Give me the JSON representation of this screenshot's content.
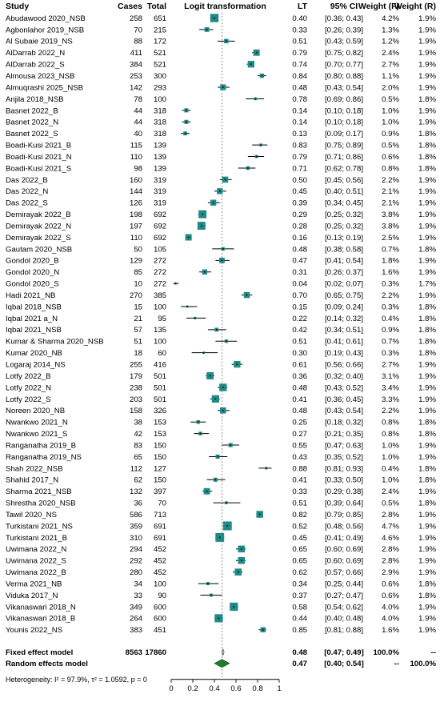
{
  "chart_data": {
    "type": "forest",
    "header": {
      "study": "Study",
      "cases": "Cases",
      "total": "Total",
      "plot": "Logit transformation",
      "lt": "LT",
      "ci": "95% CI",
      "wf": "Weight (F)",
      "wr": "Weight (R)"
    },
    "xlim": [
      0,
      1
    ],
    "xticks": [
      "0",
      "0.2",
      "0.4",
      "0.6",
      "0.8",
      "1"
    ],
    "reference_line": 0.47,
    "studies": [
      {
        "study": "Abudawood 2020_NSB",
        "cases": "258",
        "total": "651",
        "lt": "0.40",
        "ci": "[0.36; 0.43]",
        "wf": "4.2%",
        "wr": "1.9%",
        "est": 0.4,
        "lo": 0.36,
        "hi": 0.43
      },
      {
        "study": "Agbonlahor 2019_NSB",
        "cases": "70",
        "total": "215",
        "lt": "0.33",
        "ci": "[0.26; 0.39]",
        "wf": "1.3%",
        "wr": "1.9%",
        "est": 0.33,
        "lo": 0.26,
        "hi": 0.39
      },
      {
        "study": "Al Subaie 2019_NS",
        "cases": "88",
        "total": "172",
        "lt": "0.51",
        "ci": "[0.43; 0.59]",
        "wf": "1.2%",
        "wr": "1.9%",
        "est": 0.51,
        "lo": 0.43,
        "hi": 0.59
      },
      {
        "study": "AlDarrab 2022_N",
        "cases": "411",
        "total": "521",
        "lt": "0.79",
        "ci": "[0.75; 0.82]",
        "wf": "2.4%",
        "wr": "1.9%",
        "est": 0.79,
        "lo": 0.75,
        "hi": 0.82
      },
      {
        "study": "AlDarrab 2022_S",
        "cases": "384",
        "total": "521",
        "lt": "0.74",
        "ci": "[0.70; 0.77]",
        "wf": "2.7%",
        "wr": "1.9%",
        "est": 0.74,
        "lo": 0.7,
        "hi": 0.77
      },
      {
        "study": "Almousa 2023_NSB",
        "cases": "253",
        "total": "300",
        "lt": "0.84",
        "ci": "[0.80; 0.88]",
        "wf": "1.1%",
        "wr": "1.9%",
        "est": 0.84,
        "lo": 0.8,
        "hi": 0.88
      },
      {
        "study": "Almuqrashi 2025_NSB",
        "cases": "142",
        "total": "293",
        "lt": "0.48",
        "ci": "[0.43; 0.54]",
        "wf": "2.0%",
        "wr": "1.9%",
        "est": 0.48,
        "lo": 0.43,
        "hi": 0.54
      },
      {
        "study": "Anjila 2018_NSB",
        "cases": "78",
        "total": "100",
        "lt": "0.78",
        "ci": "[0.69; 0.86]",
        "wf": "0.5%",
        "wr": "1.8%",
        "est": 0.78,
        "lo": 0.69,
        "hi": 0.86
      },
      {
        "study": "Basnet 2022_B",
        "cases": "44",
        "total": "318",
        "lt": "0.14",
        "ci": "[0.10; 0.18]",
        "wf": "1.0%",
        "wr": "1.9%",
        "est": 0.14,
        "lo": 0.1,
        "hi": 0.18
      },
      {
        "study": "Basnet 2022_N",
        "cases": "44",
        "total": "318",
        "lt": "0.14",
        "ci": "[0.10; 0.18]",
        "wf": "1.0%",
        "wr": "1.9%",
        "est": 0.14,
        "lo": 0.1,
        "hi": 0.18
      },
      {
        "study": "Basnet 2022_S",
        "cases": "40",
        "total": "318",
        "lt": "0.13",
        "ci": "[0.09; 0.17]",
        "wf": "0.9%",
        "wr": "1.8%",
        "est": 0.13,
        "lo": 0.09,
        "hi": 0.17
      },
      {
        "study": "Boadi-Kusi 2021_B",
        "cases": "115",
        "total": "139",
        "lt": "0.83",
        "ci": "[0.75; 0.89]",
        "wf": "0.5%",
        "wr": "1.8%",
        "est": 0.83,
        "lo": 0.75,
        "hi": 0.89
      },
      {
        "study": "Boadi-Kusi 2021_N",
        "cases": "110",
        "total": "139",
        "lt": "0.79",
        "ci": "[0.71; 0.86]",
        "wf": "0.6%",
        "wr": "1.8%",
        "est": 0.79,
        "lo": 0.71,
        "hi": 0.86
      },
      {
        "study": "Boadi-Kusi 2021_S",
        "cases": "98",
        "total": "139",
        "lt": "0.71",
        "ci": "[0.62; 0.78]",
        "wf": "0.8%",
        "wr": "1.8%",
        "est": 0.71,
        "lo": 0.62,
        "hi": 0.78
      },
      {
        "study": "Das 2022_B",
        "cases": "160",
        "total": "319",
        "lt": "0.50",
        "ci": "[0.45; 0.56]",
        "wf": "2.2%",
        "wr": "1.9%",
        "est": 0.5,
        "lo": 0.45,
        "hi": 0.56
      },
      {
        "study": "Das 2022_N",
        "cases": "144",
        "total": "319",
        "lt": "0.45",
        "ci": "[0.40; 0.51]",
        "wf": "2.1%",
        "wr": "1.9%",
        "est": 0.45,
        "lo": 0.4,
        "hi": 0.51
      },
      {
        "study": "Das 2022_S",
        "cases": "126",
        "total": "319",
        "lt": "0.39",
        "ci": "[0.34; 0.45]",
        "wf": "2.1%",
        "wr": "1.9%",
        "est": 0.39,
        "lo": 0.34,
        "hi": 0.45
      },
      {
        "study": "Demirayak 2022_B",
        "cases": "198",
        "total": "692",
        "lt": "0.29",
        "ci": "[0.25; 0.32]",
        "wf": "3.8%",
        "wr": "1.9%",
        "est": 0.29,
        "lo": 0.25,
        "hi": 0.32
      },
      {
        "study": "Demirayak 2022_N",
        "cases": "197",
        "total": "692",
        "lt": "0.28",
        "ci": "[0.25; 0.32]",
        "wf": "3.8%",
        "wr": "1.9%",
        "est": 0.28,
        "lo": 0.25,
        "hi": 0.32
      },
      {
        "study": "Demirayak 2022_S",
        "cases": "110",
        "total": "692",
        "lt": "0.16",
        "ci": "[0.13; 0.19]",
        "wf": "2.5%",
        "wr": "1.9%",
        "est": 0.16,
        "lo": 0.13,
        "hi": 0.19
      },
      {
        "study": "Gautam 2020_NSB",
        "cases": "50",
        "total": "105",
        "lt": "0.48",
        "ci": "[0.38; 0.58]",
        "wf": "0.7%",
        "wr": "1.8%",
        "est": 0.48,
        "lo": 0.38,
        "hi": 0.58
      },
      {
        "study": "Gondol 2020_B",
        "cases": "129",
        "total": "272",
        "lt": "0.47",
        "ci": "[0.41; 0.54]",
        "wf": "1.8%",
        "wr": "1.9%",
        "est": 0.47,
        "lo": 0.41,
        "hi": 0.54
      },
      {
        "study": "Gondol 2020_N",
        "cases": "85",
        "total": "272",
        "lt": "0.31",
        "ci": "[0.26; 0.37]",
        "wf": "1.6%",
        "wr": "1.9%",
        "est": 0.31,
        "lo": 0.26,
        "hi": 0.37
      },
      {
        "study": "Gondol 2020_S",
        "cases": "10",
        "total": "272",
        "lt": "0.04",
        "ci": "[0.02; 0.07]",
        "wf": "0.3%",
        "wr": "1.7%",
        "est": 0.04,
        "lo": 0.02,
        "hi": 0.07
      },
      {
        "study": "Hadi 2021_NB",
        "cases": "270",
        "total": "385",
        "lt": "0.70",
        "ci": "[0.65; 0.75]",
        "wf": "2.2%",
        "wr": "1.9%",
        "est": 0.7,
        "lo": 0.65,
        "hi": 0.75
      },
      {
        "study": "Iqbal 2018_NSB",
        "cases": "15",
        "total": "100",
        "lt": "0.15",
        "ci": "[0.09; 0.24]",
        "wf": "0.3%",
        "wr": "1.8%",
        "est": 0.15,
        "lo": 0.09,
        "hi": 0.24
      },
      {
        "study": "Iqbal 2021 a_N",
        "cases": "21",
        "total": "95",
        "lt": "0.22",
        "ci": "[0.14; 0.32]",
        "wf": "0.4%",
        "wr": "1.8%",
        "est": 0.22,
        "lo": 0.14,
        "hi": 0.32
      },
      {
        "study": "Iqbal 2021_NSB",
        "cases": "57",
        "total": "135",
        "lt": "0.42",
        "ci": "[0.34; 0.51]",
        "wf": "0.9%",
        "wr": "1.8%",
        "est": 0.42,
        "lo": 0.34,
        "hi": 0.51
      },
      {
        "study": "Kumar & Sharma 2020_NSB",
        "cases": "51",
        "total": "100",
        "lt": "0.51",
        "ci": "[0.41; 0.61]",
        "wf": "0.7%",
        "wr": "1.8%",
        "est": 0.51,
        "lo": 0.41,
        "hi": 0.61
      },
      {
        "study": "Kumar 2020_NB",
        "cases": "18",
        "total": "60",
        "lt": "0.30",
        "ci": "[0.19; 0.43]",
        "wf": "0.3%",
        "wr": "1.8%",
        "est": 0.3,
        "lo": 0.19,
        "hi": 0.43
      },
      {
        "study": "Logaraj 2014_NS",
        "cases": "255",
        "total": "416",
        "lt": "0.61",
        "ci": "[0.56; 0.66]",
        "wf": "2.7%",
        "wr": "1.9%",
        "est": 0.61,
        "lo": 0.56,
        "hi": 0.66
      },
      {
        "study": "Lotfy 2022_B",
        "cases": "179",
        "total": "501",
        "lt": "0.36",
        "ci": "[0.32; 0.40]",
        "wf": "3.1%",
        "wr": "1.9%",
        "est": 0.36,
        "lo": 0.32,
        "hi": 0.4
      },
      {
        "study": "Lotfy 2022_N",
        "cases": "238",
        "total": "501",
        "lt": "0.48",
        "ci": "[0.43; 0.52]",
        "wf": "3.4%",
        "wr": "1.9%",
        "est": 0.48,
        "lo": 0.43,
        "hi": 0.52
      },
      {
        "study": "Lotfy 2022_S",
        "cases": "203",
        "total": "501",
        "lt": "0.41",
        "ci": "[0.36; 0.45]",
        "wf": "3.3%",
        "wr": "1.9%",
        "est": 0.41,
        "lo": 0.36,
        "hi": 0.45
      },
      {
        "study": "Noreen 2020_NB",
        "cases": "158",
        "total": "326",
        "lt": "0.48",
        "ci": "[0.43; 0.54]",
        "wf": "2.2%",
        "wr": "1.9%",
        "est": 0.48,
        "lo": 0.43,
        "hi": 0.54
      },
      {
        "study": "Nwankwo 2021_N",
        "cases": "38",
        "total": "153",
        "lt": "0.25",
        "ci": "[0.18; 0.32]",
        "wf": "0.8%",
        "wr": "1.8%",
        "est": 0.25,
        "lo": 0.18,
        "hi": 0.32
      },
      {
        "study": "Nwankwo 2021_S",
        "cases": "42",
        "total": "153",
        "lt": "0.27",
        "ci": "[0.21; 0.35]",
        "wf": "0.8%",
        "wr": "1.8%",
        "est": 0.27,
        "lo": 0.21,
        "hi": 0.35
      },
      {
        "study": "Ranganatha 2019_B",
        "cases": "83",
        "total": "150",
        "lt": "0.55",
        "ci": "[0.47; 0.63]",
        "wf": "1.0%",
        "wr": "1.9%",
        "est": 0.55,
        "lo": 0.47,
        "hi": 0.63
      },
      {
        "study": "Ranganatha 2019_NS",
        "cases": "65",
        "total": "150",
        "lt": "0.43",
        "ci": "[0.35; 0.52]",
        "wf": "1.0%",
        "wr": "1.9%",
        "est": 0.43,
        "lo": 0.35,
        "hi": 0.52
      },
      {
        "study": "Shah 2022_NSB",
        "cases": "112",
        "total": "127",
        "lt": "0.88",
        "ci": "[0.81; 0.93]",
        "wf": "0.4%",
        "wr": "1.8%",
        "est": 0.88,
        "lo": 0.81,
        "hi": 0.93
      },
      {
        "study": "Shahid 2017_N",
        "cases": "62",
        "total": "150",
        "lt": "0.41",
        "ci": "[0.33; 0.50]",
        "wf": "1.0%",
        "wr": "1.8%",
        "est": 0.41,
        "lo": 0.33,
        "hi": 0.5
      },
      {
        "study": "Sharma 2021_NSB",
        "cases": "132",
        "total": "397",
        "lt": "0.33",
        "ci": "[0.29; 0.38]",
        "wf": "2.4%",
        "wr": "1.9%",
        "est": 0.33,
        "lo": 0.29,
        "hi": 0.38
      },
      {
        "study": "Shrestha 2020_NSB",
        "cases": "36",
        "total": "70",
        "lt": "0.51",
        "ci": "[0.39; 0.64]",
        "wf": "0.5%",
        "wr": "1.8%",
        "est": 0.51,
        "lo": 0.39,
        "hi": 0.64
      },
      {
        "study": "Tawil 2020_NS",
        "cases": "586",
        "total": "713",
        "lt": "0.82",
        "ci": "[0.79; 0.85]",
        "wf": "2.8%",
        "wr": "1.9%",
        "est": 0.82,
        "lo": 0.79,
        "hi": 0.85
      },
      {
        "study": "Turkistani 2021_NS",
        "cases": "359",
        "total": "691",
        "lt": "0.52",
        "ci": "[0.48; 0.56]",
        "wf": "4.7%",
        "wr": "1.9%",
        "est": 0.52,
        "lo": 0.48,
        "hi": 0.56
      },
      {
        "study": "Turkistani 2021_B",
        "cases": "310",
        "total": "691",
        "lt": "0.45",
        "ci": "[0.41; 0.49]",
        "wf": "4.6%",
        "wr": "1.9%",
        "est": 0.45,
        "lo": 0.41,
        "hi": 0.49
      },
      {
        "study": "Uwimana 2022_N",
        "cases": "294",
        "total": "452",
        "lt": "0.65",
        "ci": "[0.60; 0.69]",
        "wf": "2.8%",
        "wr": "1.9%",
        "est": 0.65,
        "lo": 0.6,
        "hi": 0.69
      },
      {
        "study": "Uwimana 2022_S",
        "cases": "292",
        "total": "452",
        "lt": "0.65",
        "ci": "[0.60; 0.69]",
        "wf": "2.8%",
        "wr": "1.9%",
        "est": 0.65,
        "lo": 0.6,
        "hi": 0.69
      },
      {
        "study": "Uwimana 2022_B",
        "cases": "280",
        "total": "452",
        "lt": "0.62",
        "ci": "[0.57; 0.66]",
        "wf": "2.9%",
        "wr": "1.9%",
        "est": 0.62,
        "lo": 0.57,
        "hi": 0.66
      },
      {
        "study": "Verma 2021_NB",
        "cases": "34",
        "total": "100",
        "lt": "0.34",
        "ci": "[0.25; 0.44]",
        "wf": "0.6%",
        "wr": "1.8%",
        "est": 0.34,
        "lo": 0.25,
        "hi": 0.44
      },
      {
        "study": "Viduka 2017_N",
        "cases": "33",
        "total": "90",
        "lt": "0.37",
        "ci": "[0.27; 0.47]",
        "wf": "0.6%",
        "wr": "1.8%",
        "est": 0.37,
        "lo": 0.27,
        "hi": 0.47
      },
      {
        "study": "Vikanaswari 2018_N",
        "cases": "349",
        "total": "600",
        "lt": "0.58",
        "ci": "[0.54; 0.62]",
        "wf": "4.0%",
        "wr": "1.9%",
        "est": 0.58,
        "lo": 0.54,
        "hi": 0.62
      },
      {
        "study": "Vikanaswari 2018_B",
        "cases": "264",
        "total": "600",
        "lt": "0.44",
        "ci": "[0.40; 0.48]",
        "wf": "4.0%",
        "wr": "1.9%",
        "est": 0.44,
        "lo": 0.4,
        "hi": 0.48
      },
      {
        "study": "Younis 2022_NS",
        "cases": "383",
        "total": "451",
        "lt": "0.85",
        "ci": "[0.81; 0.88]",
        "wf": "1.6%",
        "wr": "1.9%",
        "est": 0.85,
        "lo": 0.81,
        "hi": 0.88
      }
    ],
    "fixed": {
      "label": "Fixed effect model",
      "cases": "8563",
      "total": "17860",
      "lt": "0.48",
      "ci": "[0.47; 0.49]",
      "wf": "100.0%",
      "wr": "--",
      "est": 0.48,
      "lo": 0.47,
      "hi": 0.49
    },
    "random": {
      "label": "Random effects model",
      "lt": "0.47",
      "ci": "[0.40; 0.54]",
      "wf": "--",
      "wr": "100.0%",
      "est": 0.47,
      "lo": 0.4,
      "hi": 0.54
    },
    "heterogeneity": "Heterogeneity: I² = 97.9%, τ² = 1.0592, p = 0",
    "colors": {
      "square": "#1f8a86",
      "diamond": "#1e7d2a",
      "ci_line": "#000000",
      "ref_line": "#888888"
    }
  }
}
